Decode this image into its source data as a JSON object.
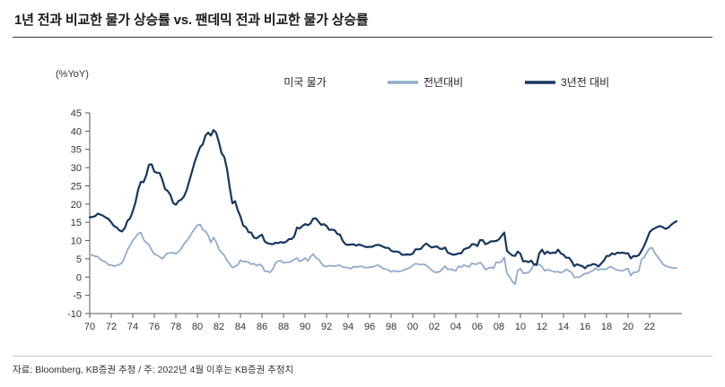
{
  "header": {
    "title": "1년 전과 비교한 물가 상승률 vs. 팬데믹 전과 비교한 물가 상승률"
  },
  "footer": {
    "note": "자료: Bloomberg, KB증권 추정 / 주: 2022년 4월 이후는 KB증권 추정치"
  },
  "colors": {
    "accent_dark": "#17375E",
    "accent_light": "#92ABCB",
    "axis": "#595959"
  },
  "chart_data": {
    "type": "line",
    "title": "미국 물가",
    "ylabel": "(%YoY)",
    "xlabel": "",
    "grid": false,
    "legend_position": "top",
    "xlim": [
      1970,
      2025
    ],
    "ylim": [
      -10,
      45
    ],
    "y_ticks": [
      45,
      40,
      35,
      30,
      25,
      20,
      15,
      10,
      5,
      0,
      -5,
      -10
    ],
    "x_tick_labels": [
      "70",
      "72",
      "74",
      "76",
      "78",
      "80",
      "82",
      "84",
      "86",
      "88",
      "90",
      "92",
      "94",
      "96",
      "98",
      "00",
      "02",
      "04",
      "06",
      "08",
      "10",
      "12",
      "14",
      "16",
      "18",
      "20",
      "22"
    ],
    "x_start": 1970,
    "x_step": 0.25,
    "series": [
      {
        "name": "전년대비",
        "color": "#92ABCB",
        "values": [
          6.2,
          6.0,
          5.7,
          5.6,
          4.8,
          4.4,
          4.1,
          3.3,
          3.3,
          3.0,
          3.2,
          3.4,
          3.9,
          5.5,
          7.4,
          8.7,
          10.0,
          10.9,
          11.9,
          12.2,
          10.3,
          9.4,
          8.9,
          7.4,
          6.3,
          6.0,
          5.5,
          5.0,
          5.9,
          6.6,
          6.6,
          6.7,
          6.4,
          7.0,
          7.8,
          9.0,
          9.9,
          10.9,
          12.2,
          13.2,
          14.2,
          14.4,
          12.9,
          12.6,
          11.4,
          9.5,
          10.9,
          9.6,
          7.6,
          6.7,
          5.9,
          4.5,
          3.6,
          2.6,
          2.9,
          3.3,
          4.6,
          4.2,
          4.3,
          4.0,
          3.5,
          3.7,
          3.1,
          3.5,
          3.1,
          1.6,
          1.6,
          1.3,
          2.1,
          3.8,
          4.4,
          4.5,
          3.9,
          4.0,
          4.1,
          4.3,
          4.8,
          5.2,
          4.3,
          4.6,
          5.2,
          4.4,
          5.6,
          6.3,
          5.3,
          4.9,
          3.8,
          3.0,
          2.9,
          3.1,
          3.1,
          3.0,
          3.2,
          3.2,
          2.7,
          2.7,
          2.5,
          2.3,
          2.9,
          2.7,
          2.9,
          3.0,
          2.6,
          2.6,
          2.7,
          2.8,
          3.0,
          3.3,
          2.9,
          2.3,
          2.2,
          1.9,
          1.4,
          1.7,
          1.6,
          1.5,
          1.7,
          2.0,
          2.3,
          2.6,
          3.2,
          3.7,
          3.5,
          3.4,
          3.5,
          3.2,
          2.6,
          1.9,
          1.4,
          1.3,
          1.5,
          2.2,
          3.0,
          2.1,
          2.2,
          1.9,
          1.7,
          3.0,
          2.7,
          3.3,
          3.0,
          2.8,
          3.8,
          3.5,
          3.6,
          4.0,
          3.3,
          2.0,
          2.4,
          2.7,
          2.4,
          4.1,
          4.0,
          4.2,
          5.4,
          1.0,
          0.0,
          -1.2,
          -2.0,
          1.8,
          2.3,
          1.1,
          1.1,
          1.2,
          2.1,
          3.4,
          3.8,
          3.4,
          2.9,
          1.7,
          2.0,
          1.8,
          1.6,
          1.4,
          1.5,
          1.2,
          1.5,
          2.1,
          1.7,
          1.3,
          -0.1,
          0.0,
          0.0,
          0.5,
          1.0,
          1.0,
          1.5,
          1.8,
          2.5,
          1.9,
          2.2,
          2.1,
          2.2,
          2.8,
          2.7,
          2.2,
          1.9,
          1.8,
          1.7,
          2.1,
          2.3,
          0.4,
          1.3,
          1.3,
          1.7,
          4.9,
          5.4,
          6.8,
          7.9,
          8.0,
          6.5,
          5.5,
          4.5,
          3.5,
          3.0,
          2.8,
          2.6,
          2.5,
          2.5
        ]
      },
      {
        "name": "3년전 대비",
        "color": "#17375E",
        "values": [
          16.4,
          16.5,
          16.7,
          17.4,
          17.1,
          16.8,
          16.3,
          15.9,
          15.0,
          14.0,
          13.6,
          12.8,
          12.5,
          13.4,
          15.4,
          16.1,
          18.1,
          20.5,
          24.0,
          26.1,
          26.0,
          27.9,
          30.8,
          30.9,
          28.9,
          28.6,
          28.5,
          26.6,
          24.1,
          23.6,
          22.5,
          20.3,
          19.8,
          20.9,
          21.2,
          22.1,
          23.8,
          26.4,
          28.9,
          31.6,
          33.6,
          35.6,
          36.4,
          38.8,
          39.6,
          38.8,
          40.3,
          39.5,
          36.9,
          33.9,
          32.9,
          29.6,
          24.6,
          20.2,
          20.8,
          18.3,
          16.6,
          14.1,
          13.7,
          12.3,
          12.2,
          10.8,
          10.6,
          11.2,
          11.6,
          9.8,
          9.3,
          9.1,
          9.0,
          9.4,
          9.3,
          9.6,
          9.4,
          9.7,
          10.4,
          10.4,
          11.2,
          13.6,
          13.3,
          14.0,
          14.5,
          14.2,
          14.7,
          16.0,
          16.1,
          15.2,
          14.3,
          14.5,
          14.0,
          12.9,
          13.0,
          12.8,
          11.8,
          11.6,
          9.9,
          9.0,
          8.8,
          8.9,
          9.0,
          8.6,
          8.9,
          8.7,
          8.4,
          8.2,
          8.3,
          8.3,
          8.7,
          8.8,
          8.7,
          8.3,
          8.0,
          8.0,
          7.2,
          7.0,
          7.0,
          6.8,
          6.1,
          6.1,
          6.2,
          6.1,
          6.4,
          7.6,
          7.6,
          7.7,
          8.6,
          9.2,
          8.6,
          8.1,
          8.3,
          8.4,
          7.8,
          7.7,
          8.1,
          6.7,
          6.4,
          6.1,
          6.2,
          6.5,
          6.5,
          7.6,
          7.9,
          8.1,
          9.0,
          9.0,
          8.5,
          10.1,
          10.1,
          9.0,
          9.3,
          9.8,
          9.8,
          9.9,
          10.3,
          11.3,
          12.2,
          7.2,
          6.5,
          5.9,
          5.8,
          7.0,
          6.4,
          4.3,
          4.4,
          4.1,
          4.5,
          3.5,
          3.3,
          6.5,
          7.5,
          6.3,
          7.0,
          6.5,
          6.7,
          6.6,
          7.5,
          6.5,
          6.1,
          5.3,
          5.3,
          4.4,
          3.0,
          3.5,
          3.2,
          3.0,
          2.4,
          3.1,
          3.2,
          3.6,
          3.4,
          2.9,
          3.7,
          4.5,
          5.8,
          5.8,
          6.5,
          6.2,
          6.7,
          6.6,
          6.7,
          6.5,
          6.5,
          5.1,
          5.8,
          5.7,
          6.0,
          7.2,
          8.6,
          10.4,
          12.3,
          13.0,
          13.4,
          13.8,
          14.0,
          13.6,
          13.2,
          13.6,
          14.3,
          14.9,
          15.3
        ]
      }
    ]
  }
}
